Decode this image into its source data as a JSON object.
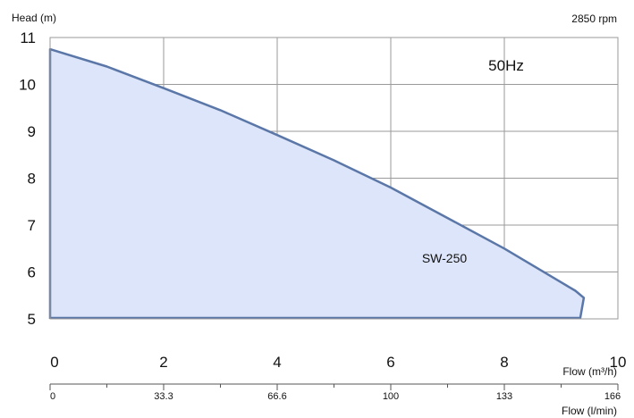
{
  "header": {
    "y_axis_title": "Head (m)",
    "rpm": "2850 rpm"
  },
  "chart_data": {
    "type": "area",
    "title": "",
    "ylabel": "Head (m)",
    "xlabel": "Flow (m³/h)",
    "secondary_xlabel": "Flow (l/min)",
    "xlim": [
      0,
      10
    ],
    "ylim": [
      5,
      11
    ],
    "x_ticks": [
      "0",
      "2",
      "4",
      "6",
      "8",
      "10"
    ],
    "y_ticks": [
      "5",
      "6",
      "7",
      "8",
      "9",
      "10",
      "11"
    ],
    "secondary_x_ticks": [
      "0",
      "33.3",
      "66.6",
      "100",
      "133",
      "166"
    ],
    "frequency_label": "50Hz",
    "grid": true,
    "colors": {
      "fill": "#dde5fa",
      "line": "#5a77a8",
      "grid": "#9a9a9a"
    },
    "series": [
      {
        "name": "SW-250",
        "x": [
          0,
          1,
          2,
          3,
          4,
          5,
          6,
          7,
          8,
          9,
          9.25,
          9.4
        ],
        "y": [
          10.75,
          10.38,
          9.92,
          9.45,
          8.92,
          8.38,
          7.8,
          7.15,
          6.5,
          5.78,
          5.6,
          5.45
        ]
      }
    ]
  }
}
